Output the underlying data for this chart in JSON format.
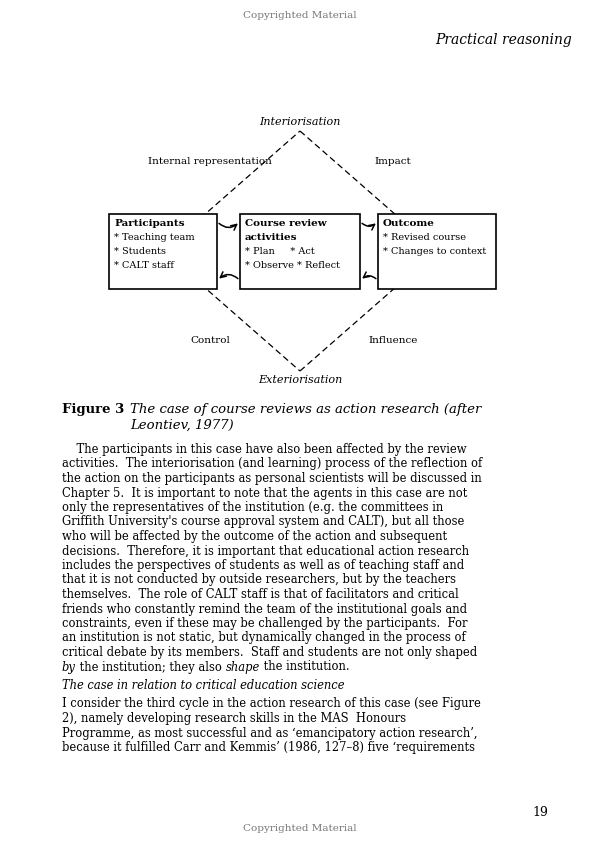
{
  "header_text": "Copyrighted Material",
  "header_italic": "Practical reasoning",
  "fig_diag": {
    "interiorisation": "Interiorisation",
    "exteriorisation": "Exteriorisation",
    "internal_rep": "Internal representation",
    "impact": "Impact",
    "control": "Control",
    "influence": "Influence",
    "box1_title": "Participants",
    "box1_lines": [
      "* Teaching team",
      "* Students",
      "* CALT staff"
    ],
    "box2_title_line1": "Course review",
    "box2_title_line2": "activities",
    "box2_lines": [
      "* Plan     * Act",
      "* Observe * Reflect"
    ],
    "box3_title": "Outcome",
    "box3_lines": [
      "* Revised course",
      "* Changes to context"
    ]
  },
  "fig_bold": "Figure 3",
  "fig_italic": "The case of course reviews as action research (after",
  "fig_italic2": "Leontiev, 1977)",
  "p1_lines": [
    "    The participants in this case have also been affected by the review",
    "activities.  The interiorisation (and learning) process of the reflection of",
    "the action on the participants as personal scientists will be discussed in",
    "Chapter 5.  It is important to note that the agents in this case are not",
    "only the representatives of the institution (e.g. the committees in",
    "Griffith University's course approval system and CALT), but all those",
    "who will be affected by the outcome of the action and subsequent",
    "decisions.  Therefore, it is important that educational action research",
    "includes the perspectives of students as well as of teaching staff and",
    "that it is not conducted by outside researchers, but by the teachers",
    "themselves.  The role of CALT staff is that of facilitators and critical",
    "friends who constantly remind the team of the institutional goals and",
    "constraints, even if these may be challenged by the participants.  For",
    "an institution is not static, but dynamically changed in the process of",
    "critical debate by its members.  Staff and students are not only shaped"
  ],
  "p1_last_line_parts": [
    {
      "text": "by",
      "italic": true
    },
    {
      "text": " the institution; they also ",
      "italic": false
    },
    {
      "text": "shape",
      "italic": true
    },
    {
      "text": " the institution.",
      "italic": false
    }
  ],
  "subheading": "The case in relation to critical education science",
  "p2_lines": [
    "I consider the third cycle in the action research of this case (see Figure",
    "2), namely developing research skills in the MAS  Honours",
    "Programme, as most successful and as ‘emancipatory action research’,",
    "because it fulfilled Carr and Kemmis’ (1986, 127–8) five ‘requirements"
  ],
  "page_number": "19",
  "footer_text": "Copyrighted Material"
}
